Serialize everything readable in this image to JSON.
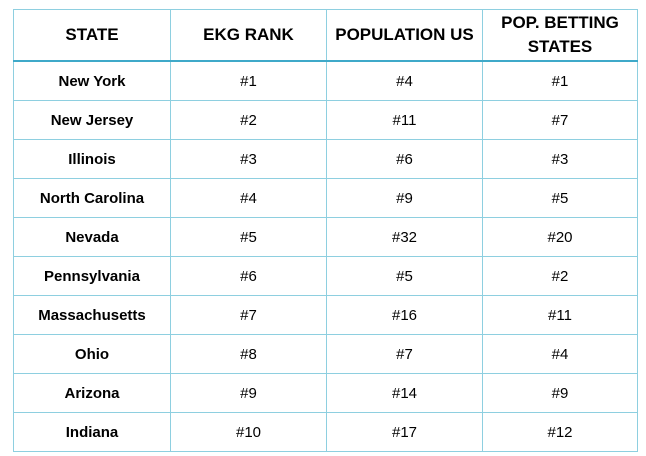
{
  "table": {
    "headers": [
      "STATE",
      "EKG RANK",
      "POPULATION US",
      "POP. BETTING STATES"
    ],
    "rows": [
      [
        "New York",
        "#1",
        "#4",
        "#1"
      ],
      [
        "New Jersey",
        "#2",
        "#11",
        "#7"
      ],
      [
        "Illinois",
        "#3",
        "#6",
        "#3"
      ],
      [
        "North Carolina",
        "#4",
        "#9",
        "#5"
      ],
      [
        "Nevada",
        "#5",
        "#32",
        "#20"
      ],
      [
        "Pennsylvania",
        "#6",
        "#5",
        "#2"
      ],
      [
        "Massachusetts",
        "#7",
        "#16",
        "#11"
      ],
      [
        "Ohio",
        "#8",
        "#7",
        "#4"
      ],
      [
        "Arizona",
        "#9",
        "#14",
        "#9"
      ],
      [
        "Indiana",
        "#10",
        "#17",
        "#12"
      ]
    ]
  },
  "colors": {
    "border": "#8ecfe0",
    "header_rule": "#3fa9c9",
    "text": "#000000",
    "background": "#ffffff"
  }
}
